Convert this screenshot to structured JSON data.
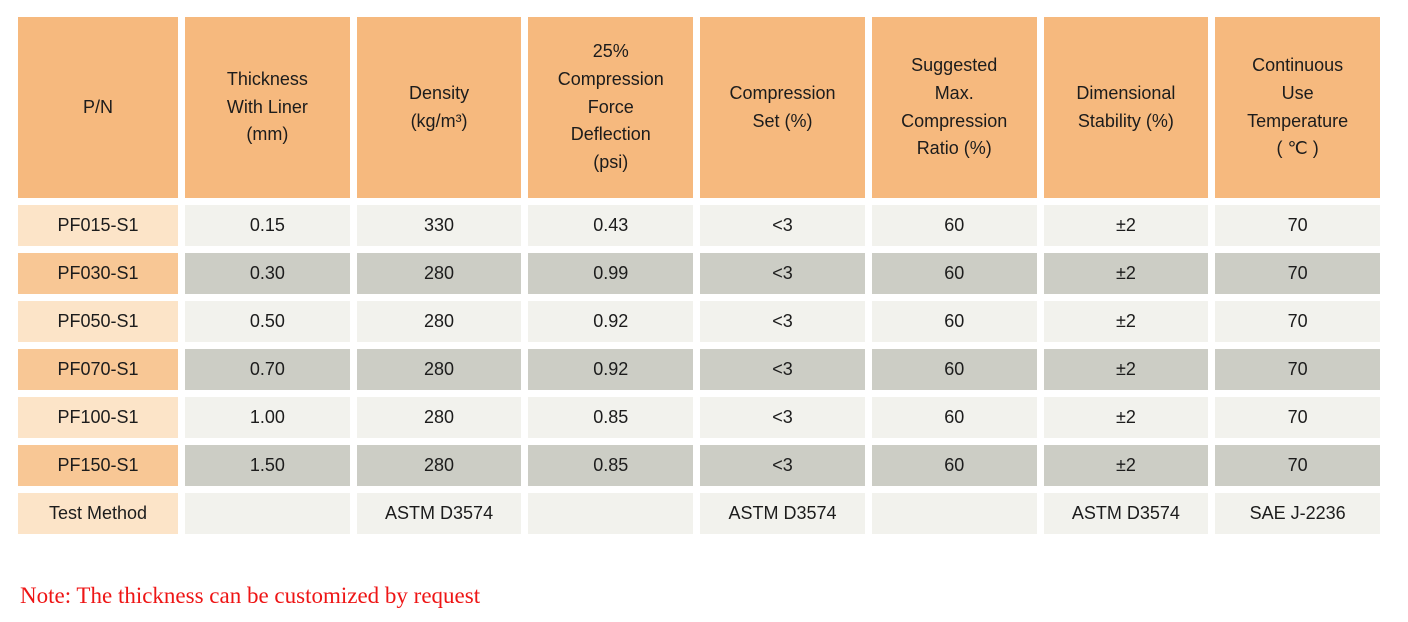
{
  "table": {
    "headers": {
      "pn": "P/N",
      "thickness": "Thickness\nWith Liner\n(mm)",
      "density": "Density\n(kg/m³)",
      "cfd": "25%\nCompression\nForce\nDeflection\n(psi)",
      "compression_set": "Compression\nSet (%)",
      "max_compression_ratio": "Suggested\nMax.\nCompression\nRatio (%)",
      "dimensional_stability": "Dimensional\nStability (%)",
      "temperature": "Continuous\nUse\nTemperature\n( ℃ )"
    },
    "rows": [
      {
        "pn": "PF015-S1",
        "values": [
          "0.15",
          "330",
          "0.43",
          "<3",
          "60",
          "±2",
          "70"
        ]
      },
      {
        "pn": "PF030-S1",
        "values": [
          "0.30",
          "280",
          "0.99",
          "<3",
          "60",
          "±2",
          "70"
        ]
      },
      {
        "pn": "PF050-S1",
        "values": [
          "0.50",
          "280",
          "0.92",
          "<3",
          "60",
          "±2",
          "70"
        ]
      },
      {
        "pn": "PF070-S1",
        "values": [
          "0.70",
          "280",
          "0.92",
          "<3",
          "60",
          "±2",
          "70"
        ]
      },
      {
        "pn": "PF100-S1",
        "values": [
          "1.00",
          "280",
          "0.85",
          "<3",
          "60",
          "±2",
          "70"
        ]
      },
      {
        "pn": "PF150-S1",
        "values": [
          "1.50",
          "280",
          "0.85",
          "<3",
          "60",
          "±2",
          "70"
        ]
      },
      {
        "pn": "Test Method",
        "values": [
          "",
          "ASTM D3574",
          "",
          "ASTM D3574",
          "",
          "ASTM D3574",
          "SAE J-2236"
        ]
      }
    ]
  },
  "note": "Note: The thickness can be customized by request",
  "colors": {
    "header_bg": "#f6b97e",
    "label_light_bg": "#fce4c8",
    "label_dark_bg": "#f8c795",
    "value_light_bg": "#f2f2ed",
    "value_dark_bg": "#cccdc5",
    "note_red": "#ee1515"
  }
}
